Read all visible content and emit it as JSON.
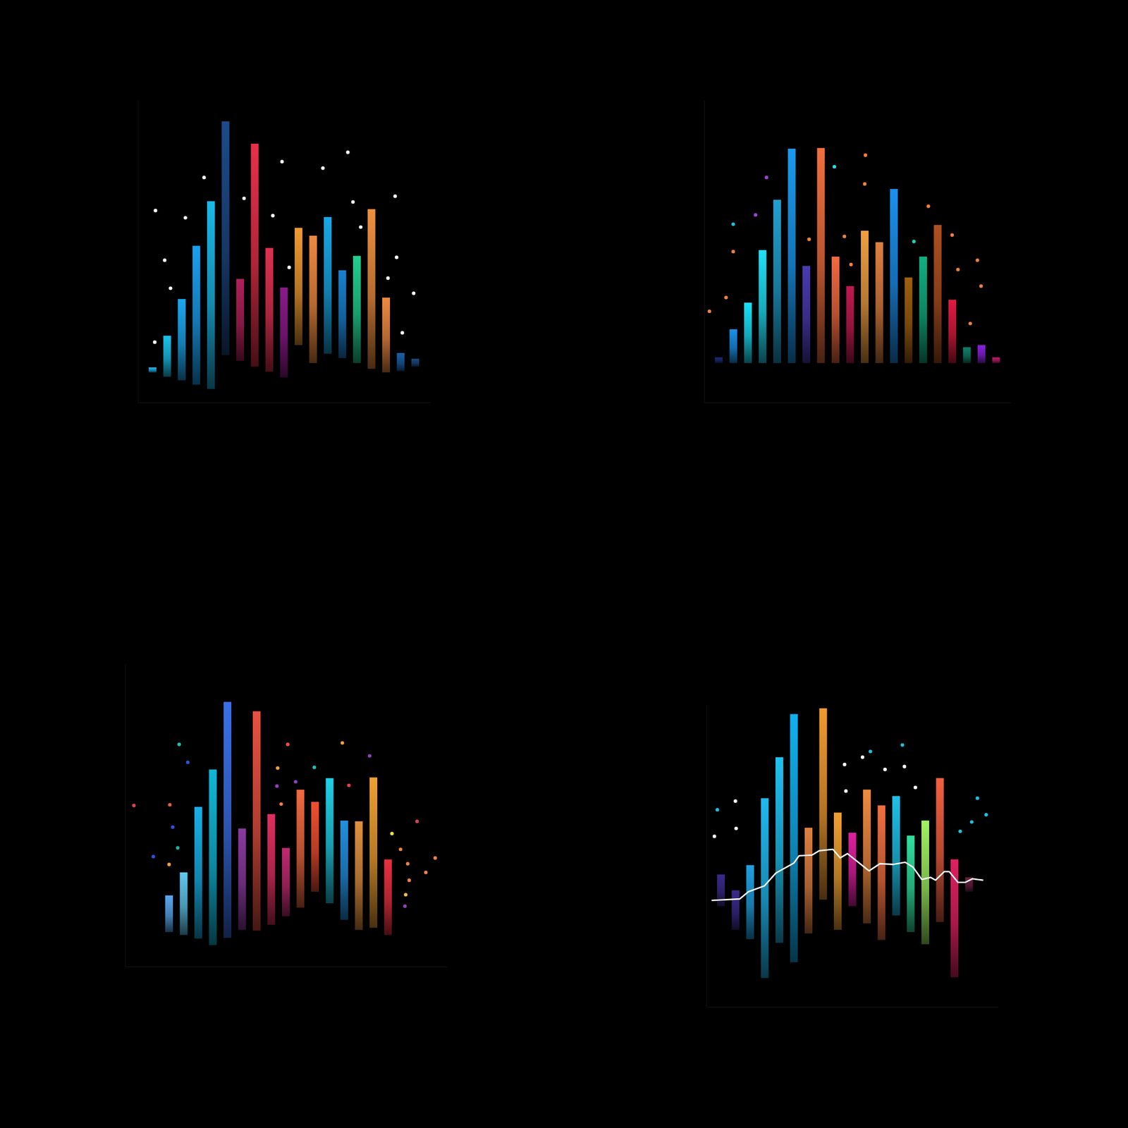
{
  "chart_data": [
    {
      "type": "bar",
      "tick_labels": false,
      "xlim": [
        -1,
        19
      ],
      "ylim": [
        0,
        420
      ],
      "categories": [
        null,
        null,
        null,
        null,
        null,
        null,
        null,
        null,
        null,
        null,
        null,
        null,
        null,
        null,
        null,
        null,
        null,
        null,
        null
      ],
      "series": [
        {
          "type": "bar",
          "values": [
            49,
            93,
            144,
            218,
            280,
            391,
            172,
            360,
            215,
            160,
            243,
            232,
            258,
            184,
            204,
            269,
            146,
            69,
            61
          ],
          "low": [
            42,
            36,
            31,
            25,
            19,
            66,
            58,
            50,
            43,
            35,
            80,
            55,
            68,
            62,
            55,
            47,
            42,
            44,
            50
          ],
          "colors": [
            "#1ab8f0",
            "#19c3ee",
            "#1aa8f0",
            "#1aa0f0",
            "#1bb8e8",
            "#1d4a8a",
            "#b0205a",
            "#e8304a",
            "#e03050",
            "#8a1a8a",
            "#f09a30",
            "#f08a40",
            "#18a8e8",
            "#1a80d0",
            "#20d090",
            "#f09040",
            "#f08a40",
            "#1a60a8",
            "#1a4a80"
          ]
        },
        {
          "type": "scatter",
          "x": [
            0.2,
            0.83,
            1.23,
            0.15,
            2.25,
            3.53,
            6.27,
            8.24,
            8.87,
            9.36,
            11.67,
            13.38,
            13.73,
            14.26,
            16.13,
            16.62,
            16.72,
            17.89,
            17.11
          ],
          "values": [
            267,
            198,
            159,
            84,
            257,
            313,
            284,
            260,
            335,
            188,
            326,
            348,
            279,
            244,
            173,
            287,
            202,
            152,
            97
          ],
          "color": "#ffffff"
        }
      ]
    },
    {
      "type": "bar",
      "tick_labels": false,
      "xlim": [
        -1,
        20
      ],
      "ylim": [
        0,
        420
      ],
      "categories": [
        null,
        null,
        null,
        null,
        null,
        null,
        null,
        null,
        null,
        null,
        null,
        null,
        null,
        null,
        null,
        null,
        null,
        null,
        null,
        null
      ],
      "series": [
        {
          "type": "bar",
          "values": [
            63,
            102,
            139,
            212,
            282,
            353,
            190,
            354,
            203,
            162,
            239,
            223,
            297,
            174,
            203,
            247,
            143,
            77,
            80,
            63
          ],
          "low": [
            55,
            55,
            55,
            55,
            55,
            55,
            55,
            55,
            55,
            55,
            55,
            55,
            55,
            55,
            55,
            55,
            55,
            55,
            55,
            55
          ],
          "colors": [
            "#1a2a7a",
            "#1a90e8",
            "#1ae0f8",
            "#20e0f8",
            "#20a0d0",
            "#1a9af0",
            "#4a3ab0",
            "#f07040",
            "#f06a40",
            "#c01a50",
            "#f0a040",
            "#e08040",
            "#1a90f0",
            "#a06010",
            "#10b080",
            "#b05020",
            "#e01a40",
            "#10806a",
            "#8a20e0",
            "#c01a6a"
          ]
        },
        {
          "type": "scatter",
          "x": [
            3.27,
            0.99,
            2.52,
            0.99,
            0.5,
            -0.64,
            7.92,
            10.05,
            10.0,
            9.06,
            8.61,
            6.19,
            13.37,
            14.36,
            15.99,
            16.39,
            17.72,
            17.97,
            17.23
          ],
          "values": [
            313,
            248,
            261,
            210,
            146,
            127,
            328,
            344,
            304,
            192,
            231,
            227,
            224,
            273,
            233,
            185,
            198,
            162,
            110
          ],
          "colors": [
            "#a040e0",
            "#20c0e0",
            "#a040e0",
            "#f08040",
            "#f08040",
            "#f08040",
            "#20e0f0",
            "#f08040",
            "#f08040",
            "#f08040",
            "#f08040",
            "#f08040",
            "#20d0b0",
            "#f08040",
            "#f08040",
            "#f08040",
            "#f08040",
            "#f08040",
            "#f08040"
          ]
        }
      ]
    },
    {
      "type": "bar",
      "tick_labels": false,
      "xlim": [
        -3,
        19
      ],
      "ylim": [
        0,
        420
      ],
      "categories": [
        null,
        null,
        null,
        null,
        null,
        null,
        null,
        null,
        null,
        null,
        null,
        null,
        null,
        null,
        null,
        null
      ],
      "series": [
        {
          "type": "bar",
          "values": [
            99,
            131,
            222,
            274,
            368,
            192,
            355,
            212,
            165,
            246,
            229,
            262,
            203,
            202,
            263,
            149
          ],
          "low": [
            48,
            44,
            39,
            30,
            40,
            51,
            50,
            58,
            70,
            82,
            104,
            88,
            65,
            51,
            54,
            44
          ],
          "colors": [
            "#5aa8f0",
            "#60c8f0",
            "#18b0e8",
            "#10b8d8",
            "#3a70e8",
            "#8a3aa0",
            "#e85040",
            "#e03060",
            "#c02a70",
            "#f06a40",
            "#f05030",
            "#20d0e8",
            "#2090e0",
            "#e09040",
            "#f0a030",
            "#e83040"
          ]
        },
        {
          "type": "scatter",
          "x": [
            -2.41,
            -1.08,
            0.05,
            0.25,
            0.59,
            0,
            0.69,
            1.28,
            7.44,
            7.39,
            7.68,
            8.13,
            8.67,
            9.95,
            11.87,
            12.32,
            13.74,
            15.27,
            15.86,
            16.99,
            16.35,
            16.45,
            17.59,
            18.23,
            16.21,
            16.16
          ],
          "values": [
            224,
            153,
            225,
            194,
            165,
            142,
            309,
            284,
            276,
            251,
            226,
            309,
            257,
            277,
            311,
            252,
            293,
            185,
            163,
            202,
            143,
            120,
            131,
            151,
            100,
            84
          ],
          "colors": [
            "#e04050",
            "#3050e0",
            "#e06040",
            "#3050e0",
            "#20b0a0",
            "#f0a040",
            "#20c0b0",
            "#3050e0",
            "#f0a040",
            "#9040c0",
            "#f08040",
            "#f05040",
            "#9040c0",
            "#20c0c0",
            "#f0a040",
            "#e04050",
            "#9040c0",
            "#f0e040",
            "#f08040",
            "#e04050",
            "#f08040",
            "#f08040",
            "#f08040",
            "#f08040",
            "#f0c040",
            "#9040c0"
          ]
        }
      ]
    },
    {
      "type": "bar",
      "tick_labels": false,
      "xlim": [
        -1,
        19
      ],
      "ylim": [
        0,
        420
      ],
      "categories": [
        null,
        null,
        null,
        null,
        null,
        null,
        null,
        null,
        null,
        null,
        null,
        null,
        null,
        null,
        null,
        null,
        null,
        null
      ],
      "series": [
        {
          "type": "bar",
          "values": [
            184,
            162,
            197,
            290,
            347,
            407,
            249,
            415,
            270,
            242,
            302,
            280,
            293,
            238,
            259,
            318,
            205,
            180
          ],
          "low": [
            140,
            107,
            94,
            40,
            89,
            62,
            102,
            149,
            107,
            140,
            116,
            93,
            127,
            104,
            87,
            118,
            41,
            160
          ],
          "colors": [
            "#3a2a8a",
            "#3a2a8a",
            "#20a0e0",
            "#20b8f0",
            "#20c0f0",
            "#10b0f0",
            "#e08040",
            "#f09a30",
            "#f0a030",
            "#e020a0",
            "#f08a40",
            "#f07040",
            "#20c0e8",
            "#30e0a0",
            "#a0f060",
            "#f06040",
            "#e02060",
            "#6a2040"
          ]
        },
        {
          "type": "scatter",
          "x": [
            -0.25,
            -0.45,
            0.99,
            1.04,
            8.47,
            9.7,
            10.24,
            12.43,
            11.24,
            12.57,
            8.56,
            13.32,
            17.57,
            18.17,
            17.18,
            16.39
          ],
          "values": [
            274,
            237,
            286,
            248,
            337,
            347,
            355,
            364,
            330,
            334,
            300,
            305,
            290,
            267,
            257,
            244
          ],
          "colors": [
            "#20c0e0",
            "#ffffff",
            "#ffffff",
            "#ffffff",
            "#ffffff",
            "#ffffff",
            "#20c0e0",
            "#20c0e0",
            "#ffffff",
            "#ffffff",
            "#ffffff",
            "#ffffff",
            "#20c0e0",
            "#20c0e0",
            "#20c0e0",
            "#20c0e0"
          ]
        },
        {
          "type": "line",
          "color": "#ffffff",
          "x": [
            -0.64,
            1.29,
            1.88,
            2.97,
            3.76,
            5.0,
            5.35,
            6.24,
            6.73,
            7.67,
            8.17,
            8.66,
            10.15,
            10.89,
            11.78,
            12.62,
            13.17,
            13.76,
            14.36,
            14.7,
            15.3,
            15.64,
            16.24,
            16.73,
            17.23,
            17.97
          ],
          "values": [
            148,
            150,
            160,
            168,
            186,
            200,
            210,
            211,
            217,
            219,
            207,
            213,
            189,
            199,
            198,
            201,
            194,
            177,
            180,
            176,
            188,
            188,
            173,
            173,
            178,
            176
          ]
        }
      ]
    }
  ]
}
